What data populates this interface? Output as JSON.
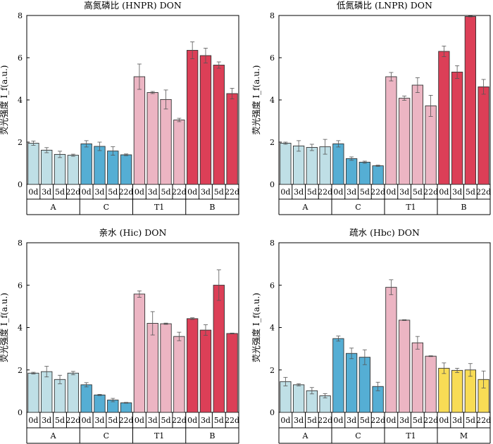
{
  "figure": {
    "group_colors": {
      "A": "#bfdfe6",
      "C": "#55aed4",
      "T1": "#ecb5c3",
      "B": "#dc3f57",
      "M": "#f8dc55"
    }
  },
  "chart_data": [
    {
      "type": "bar",
      "title": "高氮磷比 (HNPR) DON",
      "ylabel": "荧光强度 I_f(a.u.)",
      "ylim": [
        0,
        8
      ],
      "yticks": [
        0,
        2,
        4,
        6,
        8
      ],
      "days": [
        "0d",
        "3d",
        "5d",
        "22d"
      ],
      "groups": [
        "A",
        "C",
        "T1",
        "B"
      ],
      "values": [
        1.95,
        1.62,
        1.42,
        1.38,
        1.92,
        1.8,
        1.58,
        1.4,
        5.1,
        4.35,
        4.02,
        3.05,
        6.35,
        6.1,
        5.65,
        4.3
      ],
      "errors": [
        0.1,
        0.12,
        0.15,
        0.05,
        0.15,
        0.2,
        0.2,
        0.04,
        0.6,
        0.05,
        0.45,
        0.08,
        0.4,
        0.35,
        0.15,
        0.25
      ]
    },
    {
      "type": "bar",
      "title": "低氮磷比 (LNPR) DON",
      "ylabel": "荧光强度 I_f(a.u.)",
      "ylim": [
        0,
        8
      ],
      "yticks": [
        0,
        2,
        4,
        6,
        8
      ],
      "days": [
        "0d",
        "3d",
        "5d",
        "22d"
      ],
      "groups": [
        "A",
        "C",
        "T1",
        "B"
      ],
      "values": [
        1.95,
        1.82,
        1.75,
        1.78,
        1.92,
        1.22,
        1.05,
        0.88,
        5.1,
        4.08,
        4.7,
        3.72,
        6.3,
        5.32,
        7.95,
        4.62
      ],
      "errors": [
        0.05,
        0.25,
        0.15,
        0.35,
        0.15,
        0.08,
        0.05,
        0.03,
        0.2,
        0.1,
        0.35,
        0.5,
        0.25,
        0.3,
        0.02,
        0.35
      ]
    },
    {
      "type": "bar",
      "title": "亲水 (Hic) DON",
      "ylabel": "荧光强度 I_f(a.u.)",
      "ylim": [
        0,
        8
      ],
      "yticks": [
        0,
        2,
        4,
        6,
        8
      ],
      "days": [
        "0d",
        "3d",
        "5d",
        "22d"
      ],
      "groups": [
        "A",
        "C",
        "T1",
        "B"
      ],
      "values": [
        1.85,
        1.92,
        1.55,
        1.85,
        1.3,
        0.82,
        0.58,
        0.45,
        5.58,
        4.2,
        4.18,
        3.58,
        4.42,
        3.88,
        6.0,
        3.72
      ],
      "errors": [
        0.04,
        0.25,
        0.2,
        0.08,
        0.1,
        0.03,
        0.08,
        0.02,
        0.15,
        0.55,
        0.03,
        0.2,
        0.04,
        0.25,
        0.72,
        0.02
      ]
    },
    {
      "type": "bar",
      "title": "疏水 (Hbc) DON",
      "ylabel": "荧光强度 I_f(a.u.)",
      "ylim": [
        0,
        8
      ],
      "yticks": [
        0,
        2,
        4,
        6,
        8
      ],
      "days": [
        "0d",
        "3d",
        "5d",
        "22d"
      ],
      "groups": [
        "A",
        "C",
        "T1",
        "M"
      ],
      "values": [
        1.45,
        1.3,
        1.02,
        0.78,
        3.48,
        2.78,
        2.6,
        1.22,
        5.9,
        4.35,
        3.28,
        2.65,
        2.08,
        1.98,
        2.0,
        1.55
      ],
      "errors": [
        0.2,
        0.05,
        0.15,
        0.1,
        0.12,
        0.25,
        0.35,
        0.2,
        0.35,
        0.02,
        0.3,
        0.02,
        0.25,
        0.1,
        0.3,
        0.4
      ]
    }
  ]
}
